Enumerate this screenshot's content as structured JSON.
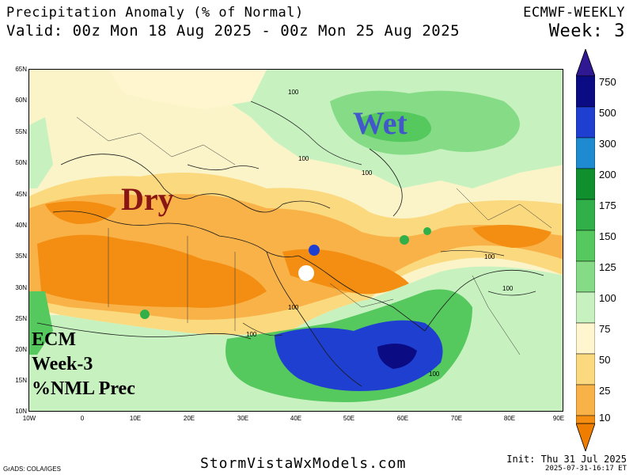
{
  "header": {
    "title": "Precipitation Anomaly (% of Normal)",
    "valid": "Valid: 00z Mon 18 Aug 2025 - 00z Mon 25 Aug 2025",
    "model": "ECMWF-WEEKLY",
    "week": "Week: 3"
  },
  "map": {
    "lat_labels": [
      "65N",
      "60N",
      "55N",
      "50N",
      "45N",
      "40N",
      "35N",
      "30N",
      "25N",
      "20N",
      "15N",
      "10N"
    ],
    "lon_labels": [
      "10W",
      "0",
      "10E",
      "20E",
      "30E",
      "40E",
      "50E",
      "60E",
      "70E",
      "80E",
      "90E"
    ],
    "contour_labels": [
      "100",
      "100",
      "100",
      "100",
      "100",
      "100",
      "100",
      "100"
    ],
    "annotations": {
      "wet": "Wet",
      "dry": "Dry",
      "ecm_line1": "ECM",
      "ecm_line2": "Week-3",
      "ecm_line3": "%NML Prec"
    }
  },
  "colorbar": {
    "levels": [
      "750",
      "500",
      "300",
      "200",
      "175",
      "150",
      "125",
      "100",
      "75",
      "50",
      "25",
      "10"
    ],
    "colors": [
      "#0b0b84",
      "#1f3fd0",
      "#1e8ad0",
      "#0f8f2e",
      "#31b04a",
      "#55c85e",
      "#86dc86",
      "#c7f2c0",
      "#fff6cf",
      "#fbd97e",
      "#f9b248",
      "#f38e12",
      "#ef7d00"
    ],
    "top_arrow_color": "#2f1891",
    "bottom_arrow_color": "#ef7d00"
  },
  "footer": {
    "site": "StormVistaWxModels.com",
    "grads": "GrADS: COLA/IGES",
    "init": "Init: Thu 31 Jul 2025",
    "timestamp": "2025-07-31-16:17 ET"
  }
}
